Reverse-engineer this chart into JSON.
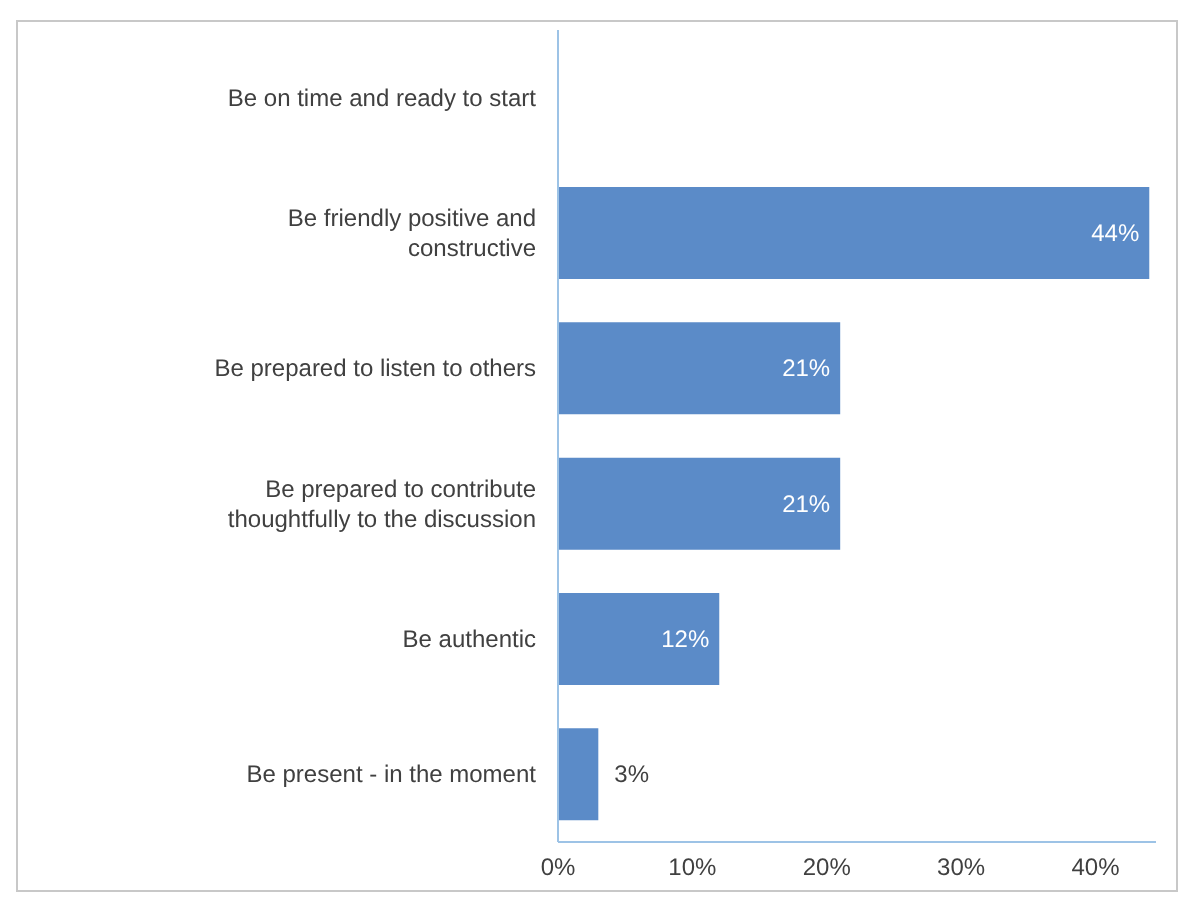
{
  "chart_data": {
    "type": "bar",
    "orientation": "horizontal",
    "categories": [
      "Be on time and ready to start",
      "Be friendly positive and constructive",
      "Be prepared to listen to others",
      "Be prepared to contribute thoughtfully to the discussion",
      "Be authentic",
      "Be present - in the moment"
    ],
    "values": [
      0,
      44,
      21,
      21,
      12,
      3
    ],
    "value_labels": [
      null,
      "44%",
      "21%",
      "21%",
      "12%",
      "3%"
    ],
    "color": "#5b8bc8",
    "xlim": [
      0,
      44.5
    ],
    "xticks": [
      {
        "value": 0,
        "label": "0%"
      },
      {
        "value": 10,
        "label": "10%"
      },
      {
        "value": 20,
        "label": "20%"
      },
      {
        "value": 30,
        "label": "30%"
      },
      {
        "value": 40,
        "label": "40%"
      }
    ],
    "grid": false,
    "legend": false
  }
}
